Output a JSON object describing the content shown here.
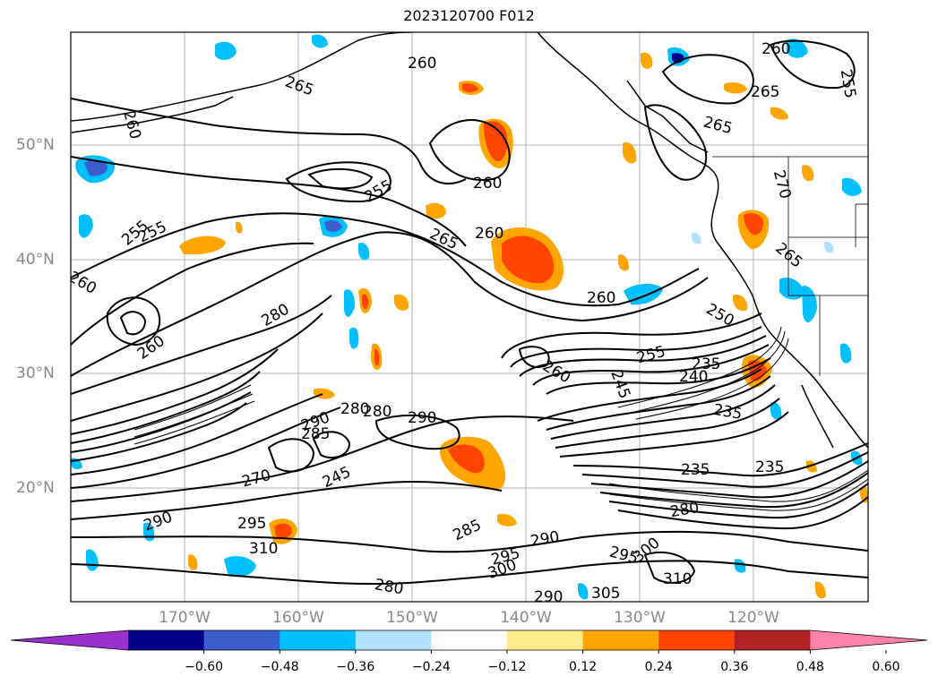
{
  "title": "2023120700 F012",
  "lat_labels": [
    "50°N",
    "40°N",
    "30°N",
    "20°N"
  ],
  "lon_labels": [
    "170°W",
    "160°W",
    "150°W",
    "140°W",
    "130°W",
    "120°W"
  ],
  "contour_labels": [
    "260",
    "255",
    "265",
    "265",
    "260",
    "265",
    "280",
    "260",
    "255",
    "255",
    "260",
    "260",
    "280",
    "260",
    "255",
    "260",
    "265",
    "260",
    "270",
    "265",
    "250",
    "255",
    "245",
    "260",
    "235",
    "240",
    "235",
    "280",
    "290",
    "290",
    "285",
    "245",
    "270",
    "235",
    "235",
    "280",
    "285",
    "295",
    "290",
    "300",
    "295",
    "310",
    "290",
    "300",
    "280",
    "295",
    "305",
    "310",
    "290"
  ],
  "colorbar": {
    "ticks": [
      "−0.60",
      "−0.48",
      "−0.36",
      "−0.24",
      "−0.12",
      "0.12",
      "0.24",
      "0.36",
      "0.48",
      "0.60"
    ],
    "colors": [
      "#9932cc",
      "#00008b",
      "#3a5fcd",
      "#00bfff",
      "#b0e2ff",
      "#ffffff",
      "#ffec8b",
      "#ffa500",
      "#ff4500",
      "#b22222",
      "#ff82ab"
    ]
  }
}
